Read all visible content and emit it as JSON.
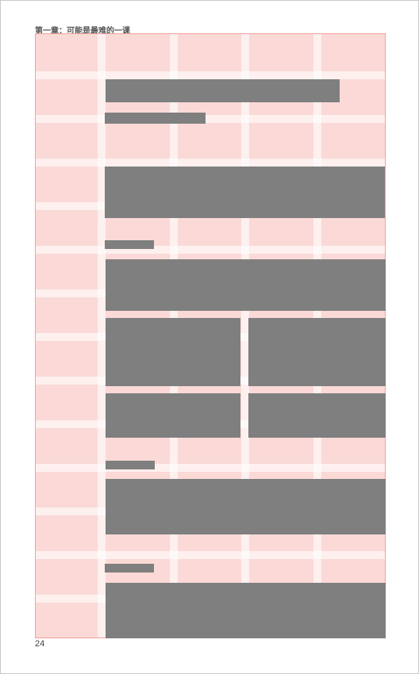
{
  "page": {
    "running_head": "第一章：可能是最难的一课",
    "page_number": "24"
  },
  "colors": {
    "grid_fill": "#fad9d6",
    "grid_border": "#f3a29a",
    "gutter": "#ffffff",
    "placeholder_block": "#7f7f7f"
  },
  "layout_grid": {
    "columns": 5,
    "rows": 14
  }
}
